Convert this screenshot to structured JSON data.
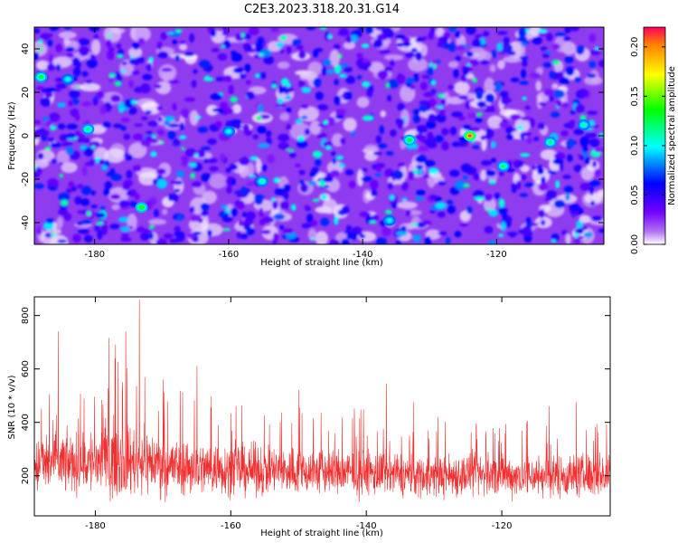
{
  "title": "C2E3.2023.318.20.31.G14",
  "chart_data": [
    {
      "type": "heatmap",
      "xlabel": "Height of straight line (km)",
      "ylabel": "Frequency (Hz)",
      "xlim": [
        -189,
        -104
      ],
      "ylim": [
        -50,
        50
      ],
      "xticks": [
        "-180",
        "-160",
        "-140",
        "-120"
      ],
      "xtick_values": [
        -180,
        -160,
        -140,
        -120
      ],
      "yticks": [
        "-40",
        "-20",
        "0",
        "20",
        "40"
      ],
      "ytick_values": [
        -40,
        -20,
        0,
        20,
        40
      ],
      "colorbar": {
        "label": "Normalized spectral amplitude",
        "range": [
          0,
          0.22
        ],
        "ticks": [
          "0.00",
          "0.05",
          "0.10",
          "0.15",
          "0.20"
        ],
        "tick_values": [
          0,
          0.05,
          0.1,
          0.15,
          0.2
        ],
        "colormap": [
          "#ffffff",
          "#8a2be2",
          "#0000ff",
          "#00ffff",
          "#00ff00",
          "#ffff00",
          "#ff0000"
        ]
      },
      "hotspots": [
        {
          "x": -124,
          "y": 0,
          "value": 0.21
        },
        {
          "x": -173,
          "y": -33,
          "value": 0.14
        },
        {
          "x": -188,
          "y": 27,
          "value": 0.13
        },
        {
          "x": -133,
          "y": -2,
          "value": 0.13
        },
        {
          "x": -181,
          "y": 3,
          "value": 0.12
        },
        {
          "x": -112,
          "y": -3,
          "value": 0.12
        },
        {
          "x": -155,
          "y": -21,
          "value": 0.11
        },
        {
          "x": -119,
          "y": -14,
          "value": 0.12
        },
        {
          "x": -160,
          "y": 2,
          "value": 0.1
        },
        {
          "x": -107,
          "y": 5,
          "value": 0.11
        },
        {
          "x": -136,
          "y": -39,
          "value": 0.1
        },
        {
          "x": -184,
          "y": 26,
          "value": 0.1
        }
      ],
      "grid": false
    },
    {
      "type": "line",
      "xlabel": "Height of straight line (km)",
      "ylabel": "SNR (10 * v/v)",
      "xlim": [
        -189,
        -104
      ],
      "ylim": [
        50,
        870
      ],
      "xticks": [
        "-180",
        "-160",
        "-140",
        "-120"
      ],
      "xtick_values": [
        -180,
        -160,
        -140,
        -120
      ],
      "yticks": [
        "200",
        "400",
        "600",
        "800"
      ],
      "ytick_values": [
        200,
        400,
        600,
        800
      ],
      "color": "#f03030",
      "envelope": {
        "x": [
          -189,
          -186,
          -183,
          -180,
          -178,
          -176,
          -173,
          -170,
          -165,
          -160,
          -155,
          -150,
          -145,
          -140,
          -135,
          -130,
          -125,
          -120,
          -115,
          -110,
          -104
        ],
        "mean": [
          240,
          250,
          245,
          255,
          265,
          255,
          260,
          240,
          230,
          225,
          220,
          218,
          215,
          210,
          205,
          200,
          205,
          200,
          200,
          200,
          205
        ],
        "spread": [
          150,
          170,
          160,
          190,
          210,
          190,
          180,
          160,
          150,
          140,
          135,
          130,
          130,
          125,
          120,
          115,
          120,
          115,
          115,
          115,
          120
        ]
      },
      "peaks": [
        {
          "x": -185.5,
          "y": 740
        },
        {
          "x": -178,
          "y": 715
        },
        {
          "x": -177,
          "y": 690
        },
        {
          "x": -175.5,
          "y": 740
        },
        {
          "x": -173.5,
          "y": 860
        },
        {
          "x": -170,
          "y": 560
        },
        {
          "x": -165,
          "y": 610
        },
        {
          "x": -150,
          "y": 520
        },
        {
          "x": -137,
          "y": 545
        },
        {
          "x": -133,
          "y": 475
        },
        {
          "x": -113,
          "y": 460
        },
        {
          "x": -109,
          "y": 475
        }
      ],
      "grid": false
    }
  ]
}
